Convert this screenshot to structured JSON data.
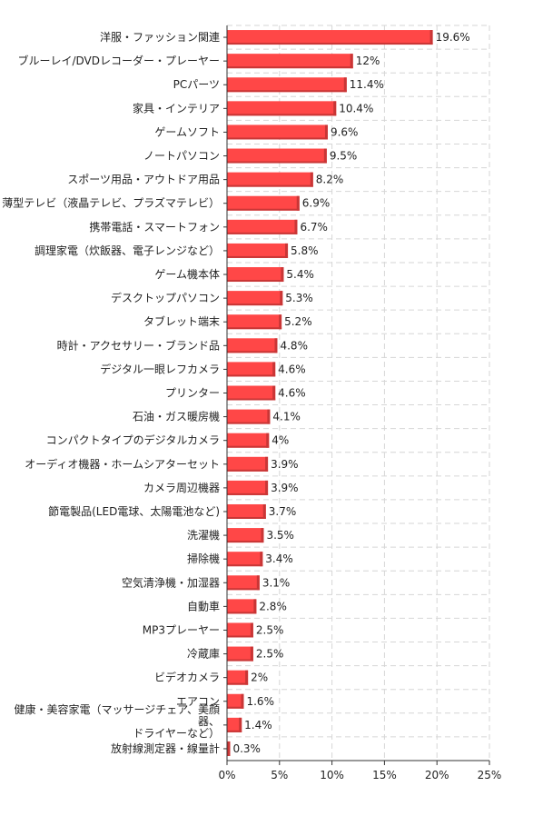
{
  "chart_data": {
    "type": "bar",
    "orientation": "horizontal",
    "categories": [
      "洋服・ファッション関連",
      "ブルーレイ/DVDレコーダー・プレーヤー",
      "PCパーツ",
      "家具・インテリア",
      "ゲームソフト",
      "ノートパソコン",
      "スポーツ用品・アウトドア用品",
      "薄型テレビ（液晶テレビ、プラズマテレビ）",
      "携帯電話・スマートフォン",
      "調理家電（炊飯器、電子レンジなど）",
      "ゲーム機本体",
      "デスクトップパソコン",
      "タブレット端末",
      "時計・アクセサリー・ブランド品",
      "デジタル一眼レフカメラ",
      "プリンター",
      "石油・ガス暖房機",
      "コンパクトタイプのデジタルカメラ",
      "オーディオ機器・ホームシアターセット",
      "カメラ周辺機器",
      "節電製品(LED電球、太陽電池など)",
      "洗濯機",
      "掃除機",
      "空気清浄機・加湿器",
      "自動車",
      "MP3プレーヤー",
      "冷蔵庫",
      "ビデオカメラ",
      "エアコン",
      "健康・美容家電（マッサージチェア、美顔器、ドライヤーなど）",
      "放射線測定器・線量計"
    ],
    "values": [
      19.6,
      12,
      11.4,
      10.4,
      9.6,
      9.5,
      8.2,
      6.9,
      6.7,
      5.8,
      5.4,
      5.3,
      5.2,
      4.8,
      4.6,
      4.6,
      4.1,
      4,
      3.9,
      3.9,
      3.7,
      3.5,
      3.4,
      3.1,
      2.8,
      2.5,
      2.5,
      2,
      1.6,
      1.4,
      0.3
    ],
    "value_labels": [
      "19.6%",
      "12%",
      "11.4%",
      "10.4%",
      "9.6%",
      "9.5%",
      "8.2%",
      "6.9%",
      "6.7%",
      "5.8%",
      "5.4%",
      "5.3%",
      "5.2%",
      "4.8%",
      "4.6%",
      "4.6%",
      "4.1%",
      "4%",
      "3.9%",
      "3.9%",
      "3.7%",
      "3.5%",
      "3.4%",
      "3.1%",
      "2.8%",
      "2.5%",
      "2.5%",
      "2%",
      "1.6%",
      "1.4%",
      "0.3%"
    ],
    "x_ticks": [
      0,
      5,
      10,
      15,
      20,
      25
    ],
    "x_tick_labels": [
      "0%",
      "5%",
      "10%",
      "15%",
      "20%",
      "25%"
    ],
    "xlim": [
      0,
      25
    ],
    "title": "",
    "xlabel": "",
    "ylabel": "",
    "grid": true,
    "bar_color": "#ff4747",
    "bar_shadow_color": "#c93636",
    "grid_color": "#d6d6d6"
  }
}
